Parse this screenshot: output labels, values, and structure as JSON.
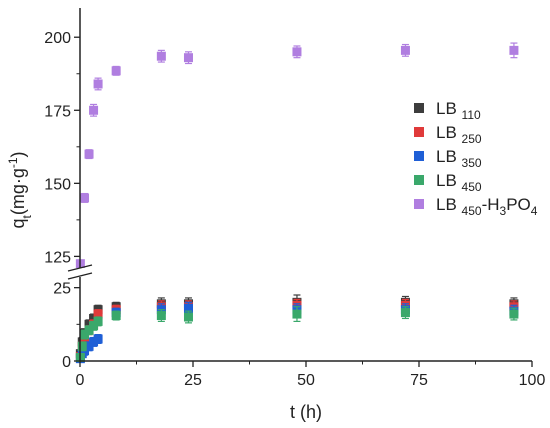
{
  "chart_data": {
    "type": "scatter",
    "xlabel": "t (h)",
    "ylabel": "qt(mg·g-1)",
    "xlim": [
      0,
      100
    ],
    "x_ticks": [
      "0",
      "25",
      "50",
      "75",
      "100"
    ],
    "y_ticks_lower": [
      "0",
      "25"
    ],
    "y_ticks_upper": [
      "125",
      "150",
      "175",
      "200"
    ],
    "y_axis_break": {
      "lower_range": [
        0,
        30
      ],
      "upper_range": [
        120,
        210
      ]
    },
    "legend_position": "right",
    "x": [
      0.083,
      0.5,
      1,
      2,
      3,
      4,
      8,
      18,
      24,
      48,
      72,
      96
    ],
    "series": [
      {
        "name": "LB 110",
        "color": "#3d3d3d",
        "values": [
          2.5,
          6.5,
          9.5,
          12.5,
          14.5,
          17.5,
          18.5,
          19.5,
          19.5,
          20,
          20,
          19.5
        ],
        "errors": [
          1,
          1.5,
          1.5,
          1.5,
          1.5,
          1.5,
          1.5,
          2,
          2,
          2.5,
          2,
          2
        ]
      },
      {
        "name": "LB 250",
        "color": "#e03a3a",
        "values": [
          1.5,
          5,
          8,
          10.5,
          12.5,
          16,
          17.5,
          18.5,
          18.5,
          19,
          19,
          18.5
        ],
        "errors": [
          1,
          1.5,
          1.5,
          1.5,
          1.5,
          1.5,
          1.5,
          2,
          2,
          2,
          2,
          2
        ]
      },
      {
        "name": "LB 350",
        "color": "#1f5fd6",
        "values": [
          0.8,
          2.5,
          3.5,
          5,
          6.5,
          7.5,
          16.5,
          17.5,
          18,
          17.5,
          17.5,
          17
        ],
        "errors": [
          0.5,
          1,
          1.5,
          1.5,
          1.5,
          1.5,
          1.5,
          2,
          2,
          2,
          2,
          2
        ]
      },
      {
        "name": "LB 450",
        "color": "#3aa86b",
        "values": [
          1.2,
          5,
          9,
          10.5,
          12,
          13.5,
          15.5,
          15.5,
          15,
          16,
          16.5,
          16
        ],
        "errors": [
          1,
          1.5,
          1.5,
          1.5,
          1.5,
          1.5,
          1.5,
          2,
          2,
          2.5,
          2,
          2
        ]
      },
      {
        "name": "LB 450-H3PO4",
        "color": "#b07ee0",
        "values": [
          122.5,
          145,
          160,
          175,
          184,
          188.5,
          193.5,
          193,
          195,
          195.5,
          195.5
        ],
        "errors": [
          1,
          1.5,
          1.5,
          2,
          2,
          1.5,
          2,
          2,
          2,
          2,
          2.5
        ],
        "x": [
          0.083,
          1,
          2,
          3,
          4,
          8,
          18,
          24,
          48,
          72,
          96
        ]
      }
    ],
    "legend": [
      {
        "base": "LB",
        "sub": "110"
      },
      {
        "base": "LB",
        "sub": "250"
      },
      {
        "base": "LB",
        "sub": "350"
      },
      {
        "base": "LB",
        "sub": "450"
      },
      {
        "base": "LB",
        "sub": "450",
        "tail1": "-H",
        "sub2": "3",
        "tail2": "PO",
        "sub3": "4"
      }
    ]
  }
}
